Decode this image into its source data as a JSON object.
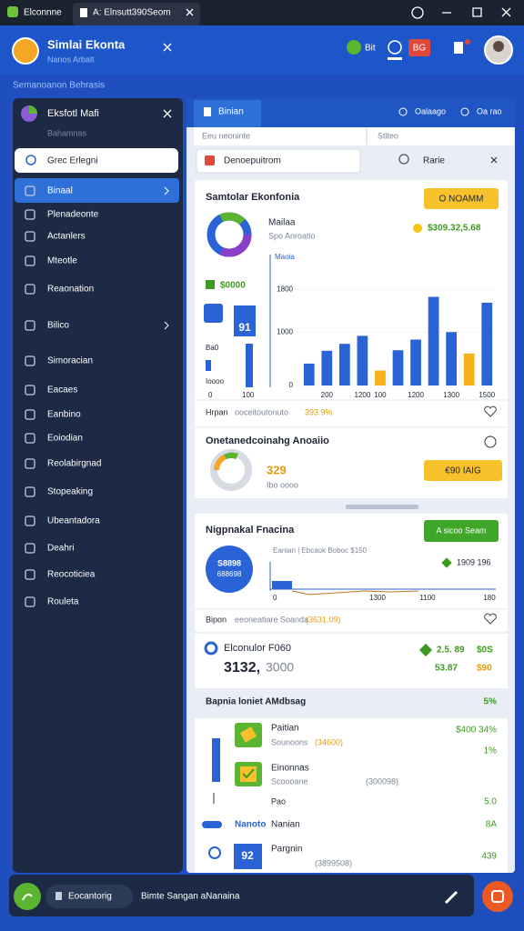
{
  "window": {
    "tabs": [
      "Elconnne",
      "A: Elnsutt390Seom"
    ]
  },
  "header": {
    "title": "Simlai Ekonta",
    "subtitle": "Nanos Arbalt",
    "buttons": [
      "Bit",
      "BG"
    ]
  },
  "breadcrumb": "Semanoanon Behrasis",
  "sidebar": {
    "title": "Eksfotl Mafi",
    "subtitle": "Bahamnas",
    "search": "Grec Erlegni",
    "items": [
      "Binaal",
      "Plenadeonte",
      "Actanlers",
      "Mteotle",
      "Reaonation",
      "Bilico",
      "Simoracian",
      "Eacaes",
      "Eanbino",
      "Eoiodian",
      "Reolabirgnad",
      "Stopeaking",
      "Ubeantadora",
      "Deahri",
      "Reocoticiea",
      "Rouleta"
    ]
  },
  "main": {
    "tab": "Binian",
    "actions": [
      "Oalaago",
      "Oa rao"
    ],
    "filters": [
      "Eeu neoninte",
      "Stiteo"
    ],
    "search": [
      "Denoepuitrom",
      "Rarie"
    ]
  },
  "card1": {
    "title": "Samtolar Ekonfonia",
    "badge": "O NOAMM",
    "label": "Mailaa",
    "sublabel": "Spo Anroatio",
    "amount": "$309.32,5.68",
    "mini": [
      "$0000",
      "91",
      "Ba0",
      "Ioooo",
      "0",
      "100"
    ],
    "chart": {
      "type": "bar",
      "axis_label": "Maoia",
      "categories": [
        null,
        "200",
        null,
        "1200",
        "100",
        null,
        "1200",
        null,
        "1300",
        null,
        "1500"
      ],
      "values": [
        410,
        650,
        780,
        930,
        280,
        660,
        860,
        1660,
        1000,
        600,
        1550
      ],
      "colors": [
        "#2a63d6",
        "#2a63d6",
        "#2a63d6",
        "#2a63d6",
        "#f5b21b",
        "#2a63d6",
        "#2a63d6",
        "#2a63d6",
        "#2a63d6",
        "#f5b21b",
        "#2a63d6"
      ],
      "ylim": [
        0,
        2400
      ],
      "yticks": [
        0,
        1000,
        1800
      ],
      "grid": true
    },
    "footer": [
      "Hrpan",
      "ooceitoutonuto",
      "393.9%"
    ]
  },
  "card2": {
    "title": "Onetanedcoinahg Anoaiio",
    "value": "329",
    "sublabel": "Ibo oooo",
    "badge": "€90 IAIG"
  },
  "card3": {
    "title": "Nigpnakal Fnacina",
    "button": "A sicoo Seam",
    "circle": [
      "S8898",
      "688698"
    ],
    "caption": "Eanian | Ebcaok Boboc $150",
    "legend": "1909 196",
    "axis": [
      "0",
      "1300",
      "1100",
      "180"
    ],
    "footer": [
      "Bipon",
      "eeoneatiare Soanda",
      "(3631.09)"
    ]
  },
  "card4": {
    "title": "Elconulor F060",
    "value": [
      "3132,",
      "3000"
    ],
    "right": [
      "2.5. 89",
      "$0S",
      "53.87",
      "$90"
    ]
  },
  "list": {
    "title": "Bapnia loniet AMdbsag",
    "total": "5%",
    "items": [
      {
        "name": "Paitian",
        "sub": "Sounoons",
        "note": "(34600)",
        "value": "$400 34%",
        "extra": "1%"
      },
      {
        "name": "Einonnas",
        "sub": "Scoooane",
        "note": "(300098)",
        "extra_label": "Pao",
        "value": "5.0"
      },
      {
        "tag": "Nanoto",
        "name": "Nanian",
        "value": "8A"
      },
      {
        "badge": "92",
        "name": "Pargnin",
        "note": "(3899508)",
        "value": "439"
      }
    ]
  },
  "bottom": {
    "chip": "Eocantorig",
    "text": "Bimte Sangan aNanaina"
  }
}
